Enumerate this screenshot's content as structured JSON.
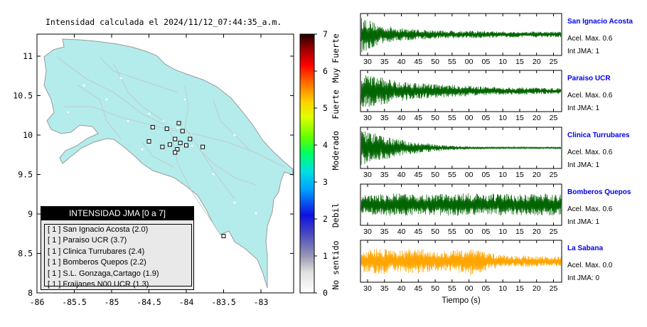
{
  "map": {
    "title": "Intensidad calculada el 2024/11/12_07:44:35_a.m.",
    "x_ticks": [
      "-86",
      "-85.5",
      "-85",
      "-84.5",
      "-84",
      "-83.5",
      "-83"
    ],
    "y_ticks": [
      "11",
      "10.5",
      "10",
      "9.5",
      "9",
      "8.5",
      "8"
    ],
    "land_color": "#b4ecec",
    "legend": {
      "title": "INTENSIDAD JMA [0 a 7]",
      "items": [
        {
          "level": "[ 1 ]",
          "label": "San Ignacio Acosta (2.0)"
        },
        {
          "level": "[ 1 ]",
          "label": "Paraiso UCR (3.7)"
        },
        {
          "level": "[ 1 ]",
          "label": "Clinica Turrubares (2.4)"
        },
        {
          "level": "[ 1 ]",
          "label": "Bomberos Quepos (2.2)"
        },
        {
          "level": "[ 1 ]",
          "label": "S.L. Gonzaga,Cartago (1.9)"
        },
        {
          "level": "[ 1 ]",
          "label": "Fraijanes N00 UCR (1.3)"
        }
      ]
    }
  },
  "colorbar": {
    "ticks": [
      "7",
      "6",
      "5",
      "4",
      "3",
      "2",
      "1",
      "0"
    ],
    "labels": [
      "Muy Fuerte",
      "Fuerte",
      "Moderado",
      "Debil",
      "No sentido"
    ]
  },
  "chart_data": [
    {
      "type": "map",
      "title": "Intensidad calculada el 2024/11/12_07:44:35_a.m.",
      "xlim": [
        -86,
        -82.5
      ],
      "ylim": [
        8,
        11.3
      ],
      "stations": [
        {
          "lon": -84.1,
          "lat": 10.15
        },
        {
          "lon": -84.05,
          "lat": 10.05
        },
        {
          "lon": -84.15,
          "lat": 9.95
        },
        {
          "lon": -83.95,
          "lat": 9.95
        },
        {
          "lon": -84.22,
          "lat": 9.88
        },
        {
          "lon": -84.08,
          "lat": 9.9
        },
        {
          "lon": -84.5,
          "lat": 9.92
        },
        {
          "lon": -84.0,
          "lat": 9.87
        },
        {
          "lon": -84.32,
          "lat": 9.85
        },
        {
          "lon": -83.78,
          "lat": 9.85
        },
        {
          "lon": -84.12,
          "lat": 9.82
        },
        {
          "lon": -84.26,
          "lat": 10.08
        },
        {
          "lon": -84.45,
          "lat": 10.1
        },
        {
          "lon": -84.15,
          "lat": 9.78
        },
        {
          "lon": -83.5,
          "lat": 8.72
        }
      ]
    },
    {
      "type": "colorbar",
      "range": [
        0,
        7
      ],
      "ticks": [
        0,
        1,
        2,
        3,
        4,
        5,
        6,
        7
      ],
      "labels": [
        "No sentido",
        "Debil",
        "Moderado",
        "Fuerte",
        "Muy Fuerte"
      ]
    },
    {
      "type": "line",
      "name": "San Ignacio Acosta",
      "xticks": [
        "30",
        "35",
        "40",
        "45",
        "50",
        "55",
        "00",
        "05",
        "10",
        "15",
        "20",
        "25"
      ],
      "xlabel": "",
      "acel_max": "Acel. Max. 0.6",
      "int_jma": "Int JMA: 1",
      "color": "#006400",
      "envelope": [
        0.95,
        0.5,
        0.35,
        0.28,
        0.22,
        0.2,
        0.2,
        0.18,
        0.15,
        0.15,
        0.15,
        0.14
      ]
    },
    {
      "type": "line",
      "name": "Paraiso UCR",
      "xticks": [
        "30",
        "35",
        "40",
        "45",
        "50",
        "55",
        "00",
        "05",
        "10",
        "15",
        "20",
        "25"
      ],
      "xlabel": "",
      "acel_max": "Acel. Max. 0.6",
      "int_jma": "Int JMA: 1",
      "color": "#006400",
      "envelope": [
        0.9,
        0.75,
        0.55,
        0.45,
        0.38,
        0.32,
        0.28,
        0.22,
        0.2,
        0.18,
        0.16,
        0.15
      ]
    },
    {
      "type": "line",
      "name": "Clinica Turrubares",
      "xticks": [
        "30",
        "35",
        "40",
        "45",
        "50",
        "55",
        "00",
        "05",
        "10",
        "15",
        "20",
        "25"
      ],
      "xlabel": "",
      "acel_max": "Acel. Max. 0.6",
      "int_jma": "Int JMA: 1",
      "color": "#006400",
      "envelope": [
        0.95,
        0.7,
        0.45,
        0.3,
        0.2,
        0.12,
        0.08,
        0.06,
        0.05,
        0.05,
        0.05,
        0.05
      ]
    },
    {
      "type": "line",
      "name": "Bomberos Quepos",
      "xticks": [
        "30",
        "35",
        "40",
        "45",
        "50",
        "55",
        "00",
        "05",
        "10",
        "15",
        "20",
        "25"
      ],
      "xlabel": "",
      "acel_max": "Acel. Max. 0.6",
      "int_jma": "Int JMA: 1",
      "color": "#006400",
      "envelope": [
        0.55,
        0.55,
        0.6,
        0.55,
        0.55,
        0.6,
        0.6,
        0.55,
        0.6,
        0.55,
        0.6,
        0.55
      ]
    },
    {
      "type": "line",
      "name": "La Sabana",
      "xticks": [
        "30",
        "35",
        "40",
        "45",
        "50",
        "55",
        "00",
        "05",
        "10",
        "15",
        "20",
        "25"
      ],
      "xlabel": "Tiempo (s)",
      "acel_max": "Acel. Max. 0.0",
      "int_jma": "Int JMA: 0",
      "color": "#ffa500",
      "envelope": [
        0.55,
        0.7,
        0.55,
        0.7,
        0.5,
        0.55,
        0.75,
        0.45,
        0.3,
        0.3,
        0.25,
        0.25
      ]
    }
  ],
  "colors": {
    "station_label": "#0000ee",
    "trace_green": "#006400",
    "trace_orange": "#ffa500"
  }
}
